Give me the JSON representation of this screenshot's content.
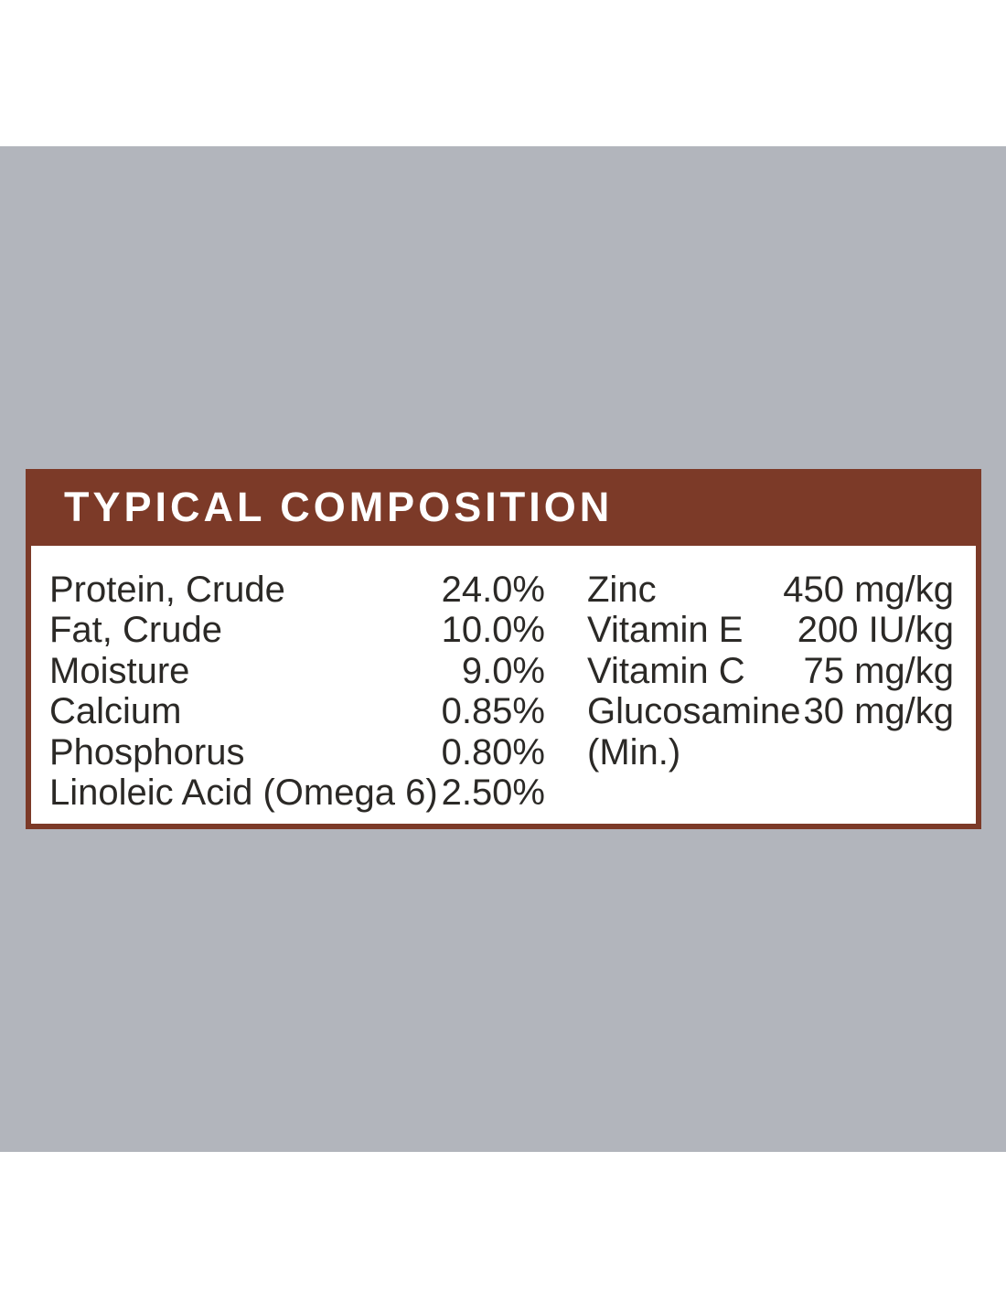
{
  "theme": {
    "page_background": "#ffffff",
    "band_background": "#b2b5bc",
    "header_background": "#7c3a28",
    "panel_background": "#ffffff",
    "title_color": "#ffffff",
    "text_color": "#2b2926"
  },
  "panel": {
    "title": "TYPICAL COMPOSITION",
    "columns": [
      {
        "rows": [
          {
            "label": "Protein, Crude",
            "value": "24.0%"
          },
          {
            "label": "Fat, Crude",
            "value": "10.0%"
          },
          {
            "label": "Moisture",
            "value": "9.0%"
          },
          {
            "label": "Calcium",
            "value": "0.85%"
          },
          {
            "label": "Phosphorus",
            "value": "0.80%"
          },
          {
            "label": "Linoleic Acid (Omega 6)",
            "value": "2.50%"
          }
        ]
      },
      {
        "rows": [
          {
            "label": "Zinc",
            "value": "450 mg/kg"
          },
          {
            "label": "Vitamin E",
            "value": "200 IU/kg"
          },
          {
            "label": "Vitamin C",
            "value": "75 mg/kg"
          },
          {
            "label": "Glucosamine",
            "value": "30 mg/kg"
          },
          {
            "label": "(Min.)",
            "value": ""
          }
        ]
      }
    ]
  }
}
